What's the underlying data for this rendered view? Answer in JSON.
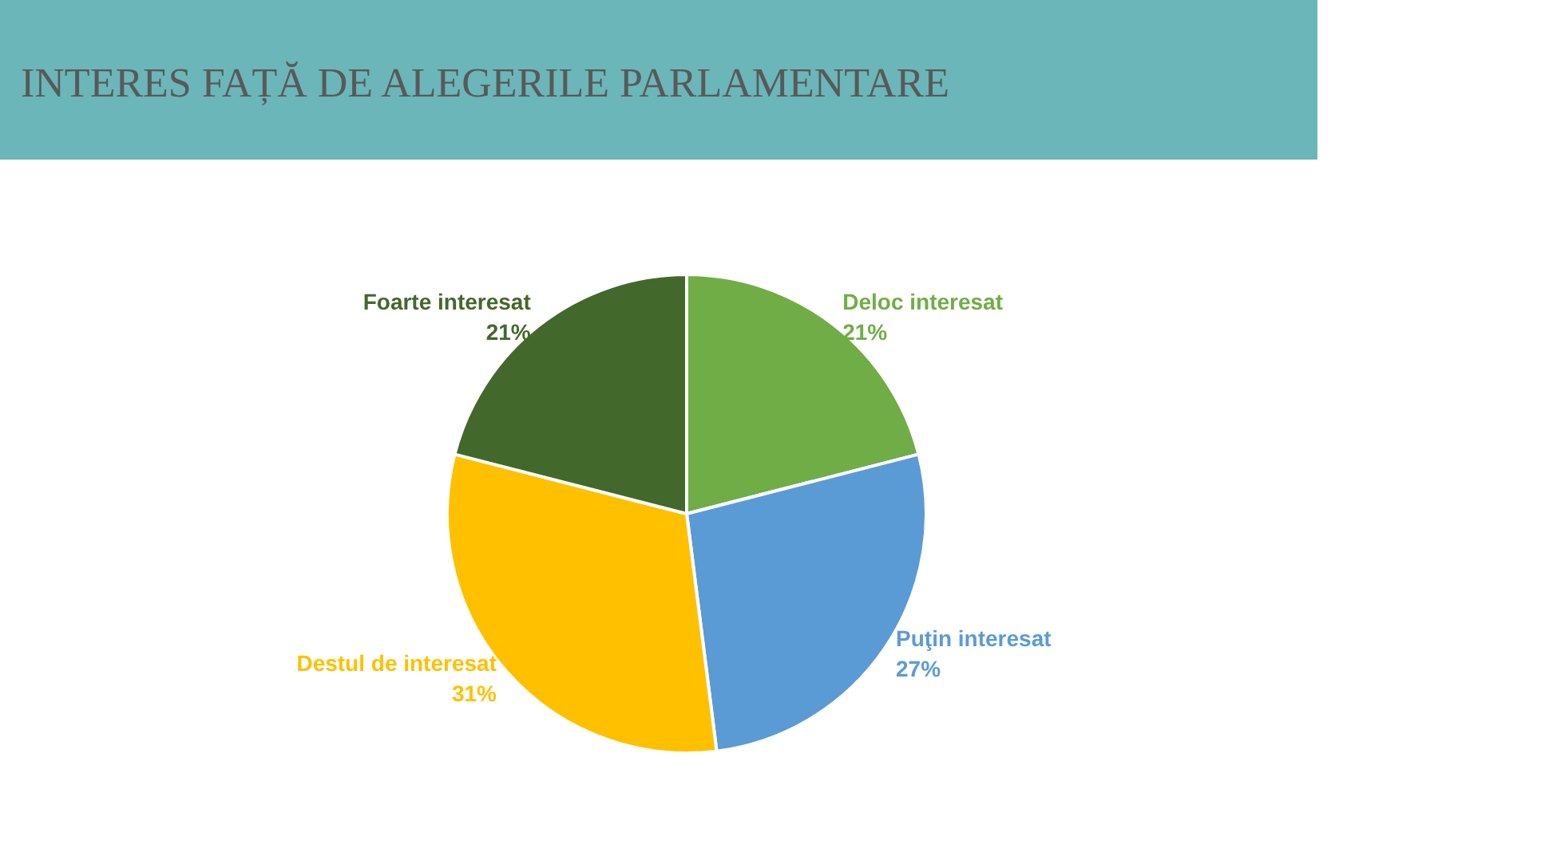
{
  "chart_data": {
    "type": "pie",
    "title": "INTERES FAȚĂ DE ALEGERILE PARLAMENTARE",
    "categories": [
      "Deloc interesat",
      "Puţin interesat",
      "Destul de interesat",
      "Foarte interesat"
    ],
    "values": [
      21,
      27,
      31,
      21
    ],
    "value_labels": [
      "21%",
      "27%",
      "31%",
      "21%"
    ],
    "colors": [
      "#70ad47",
      "#5b9bd5",
      "#ffc000",
      "#43682b"
    ],
    "legend": false
  }
}
